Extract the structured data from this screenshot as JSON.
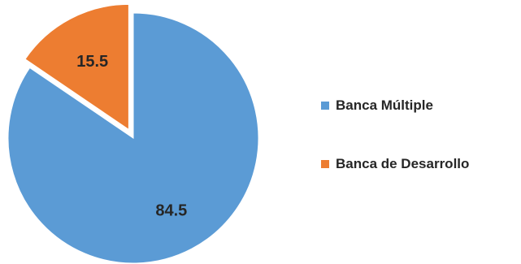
{
  "chart_data": {
    "type": "pie",
    "categories": [
      "Banca Múltiple",
      "Banca de Desarrollo"
    ],
    "values": [
      84.5,
      15.5
    ],
    "data_labels": [
      "84.5",
      "15.5"
    ],
    "colors": [
      "#5B9BD5",
      "#ED7D31"
    ],
    "exploded": [
      "Banca de Desarrollo"
    ],
    "start_angle": "12 o'clock, clockwise",
    "legend_position": "right",
    "title": ""
  },
  "legend": {
    "items": [
      {
        "label": "Banca Múltiple",
        "color": "#5B9BD5"
      },
      {
        "label": "Banca de Desarrollo",
        "color": "#ED7D31"
      }
    ]
  }
}
